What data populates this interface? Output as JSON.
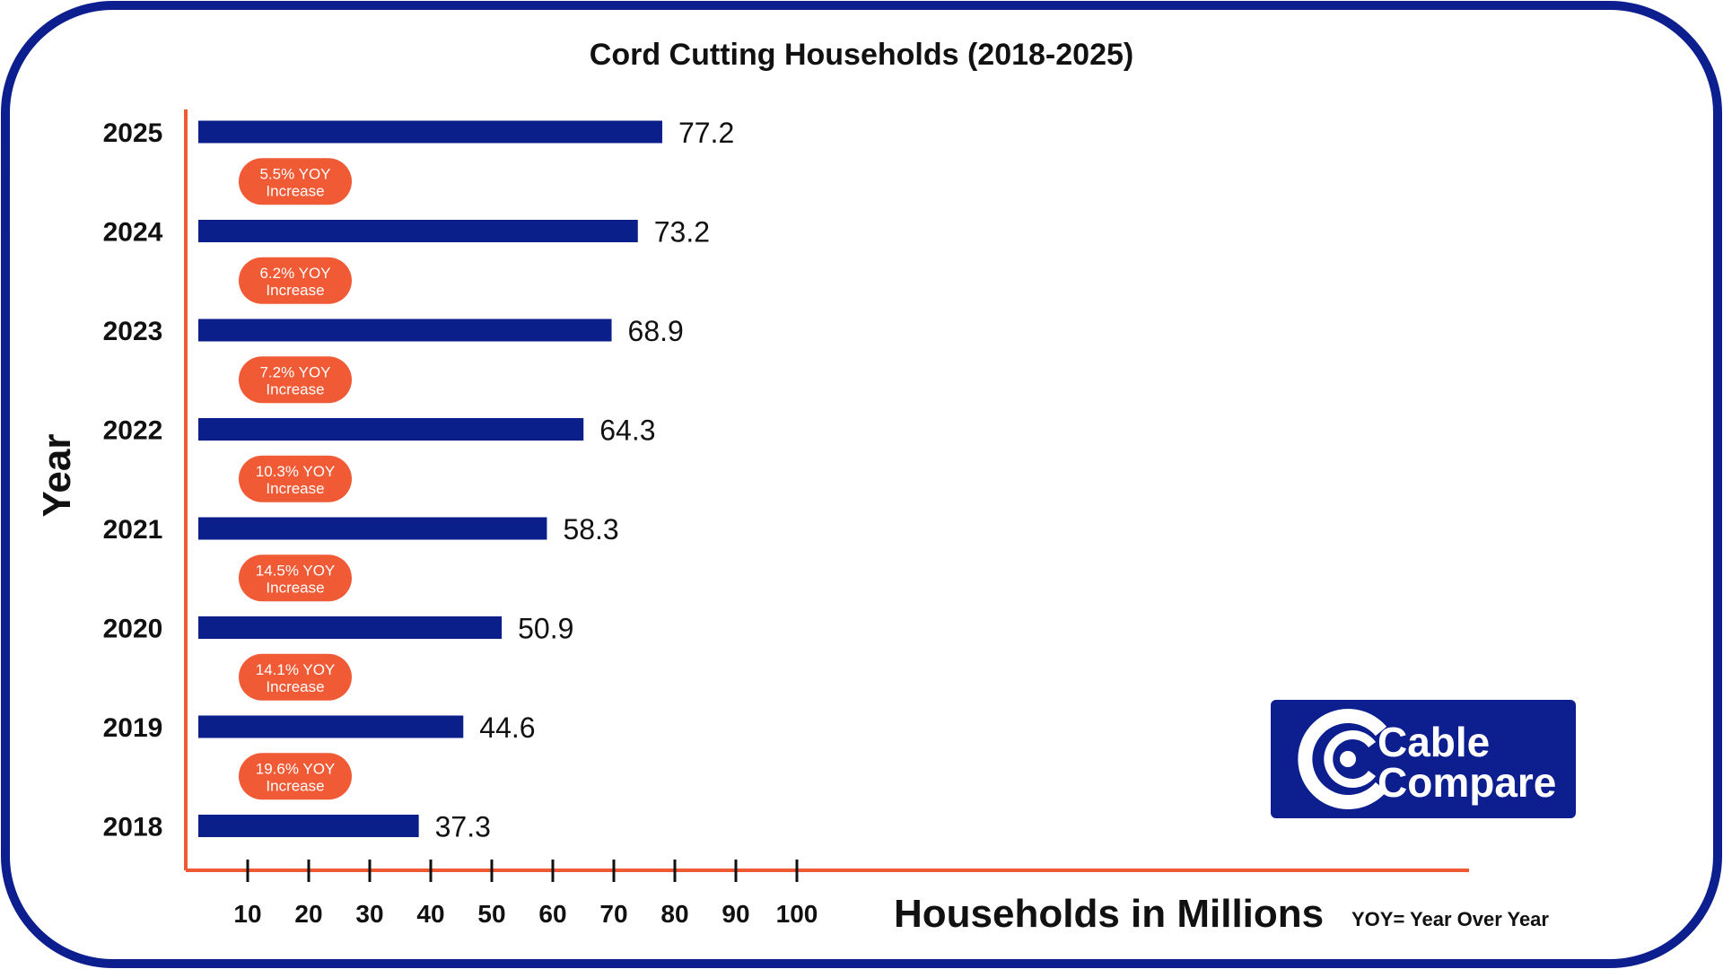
{
  "colors": {
    "bar": "#0b1f8a",
    "axis": "#ef5a34",
    "pill": "#f05a35",
    "frame": "#0d1f8f",
    "logo_bg": "#0d1f8f"
  },
  "chart_data": {
    "type": "bar",
    "orientation": "horizontal",
    "title": "Cord Cutting Households (2018-2025)",
    "xlabel": "Households in Millions",
    "ylabel": "Year",
    "xlim": [
      0,
      100
    ],
    "x_ticks": [
      "10",
      "20",
      "30",
      "40",
      "50",
      "60",
      "70",
      "80",
      "90",
      "100"
    ],
    "categories": [
      "2025",
      "2024",
      "2023",
      "2022",
      "2021",
      "2020",
      "2019",
      "2018"
    ],
    "values": [
      77.2,
      73.2,
      68.9,
      64.3,
      58.3,
      50.9,
      44.6,
      37.3
    ],
    "value_labels": [
      "77.2",
      "73.2",
      "68.9",
      "64.3",
      "58.3",
      "50.9",
      "44.6",
      "37.3"
    ],
    "annotations": [
      {
        "line1": "5.5% YOY",
        "line2": "Increase"
      },
      {
        "line1": "6.2% YOY",
        "line2": "Increase"
      },
      {
        "line1": "7.2% YOY",
        "line2": "Increase"
      },
      {
        "line1": "10.3% YOY",
        "line2": "Increase"
      },
      {
        "line1": "14.5% YOY",
        "line2": "Increase"
      },
      {
        "line1": "14.1% YOY",
        "line2": "Increase"
      },
      {
        "line1": "19.6% YOY",
        "line2": "Increase"
      }
    ],
    "note": "YOY= Year Over Year",
    "grid": false,
    "legend": "none"
  },
  "logo": {
    "line1": "Cable",
    "line2": "Compare",
    "icon": "cable-compare-c-icon"
  }
}
